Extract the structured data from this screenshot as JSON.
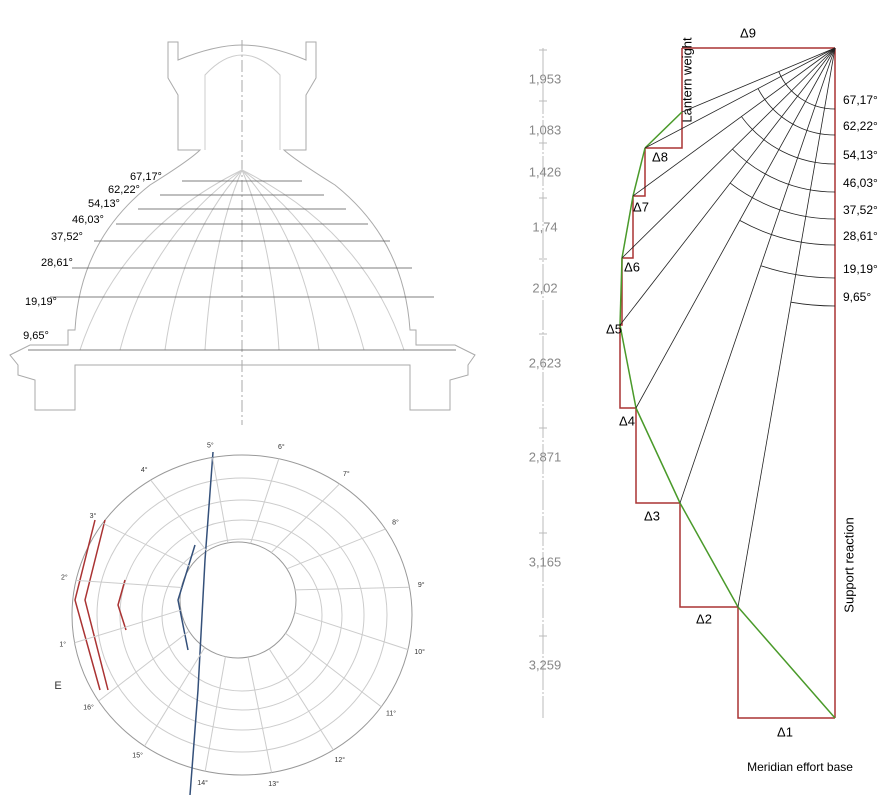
{
  "elevation": {
    "angles": [
      "67,17°",
      "62,22°",
      "54,13°",
      "46,03°",
      "37,52°",
      "28,61°",
      "19,19°",
      "9,65°"
    ]
  },
  "scale": {
    "values": [
      "1,953",
      "1,083",
      "1,426",
      "1,74",
      "2,02",
      "2,623",
      "2,871",
      "3,165",
      "3,259"
    ]
  },
  "plan": {
    "ring_labels": [
      "5°",
      "6°",
      "7°",
      "8°",
      "9°",
      "10°",
      "11°",
      "12°",
      "13°",
      "14°",
      "15°",
      "16°",
      "1°",
      "2°",
      "3°",
      "4°"
    ],
    "east": "E"
  },
  "force_polygon": {
    "top_delta": "Δ9",
    "lantern": "Lantern weight",
    "deltas": [
      "Δ8",
      "Δ7",
      "Δ6",
      "Δ5",
      "Δ4",
      "Δ3",
      "Δ2",
      "Δ1"
    ],
    "angles": [
      "67,17°",
      "62,22°",
      "54,13°",
      "46,03°",
      "37,52°",
      "28,61°",
      "19,19°",
      "9,65°"
    ],
    "support": "Support reaction",
    "base": "Meridian effort base"
  }
}
